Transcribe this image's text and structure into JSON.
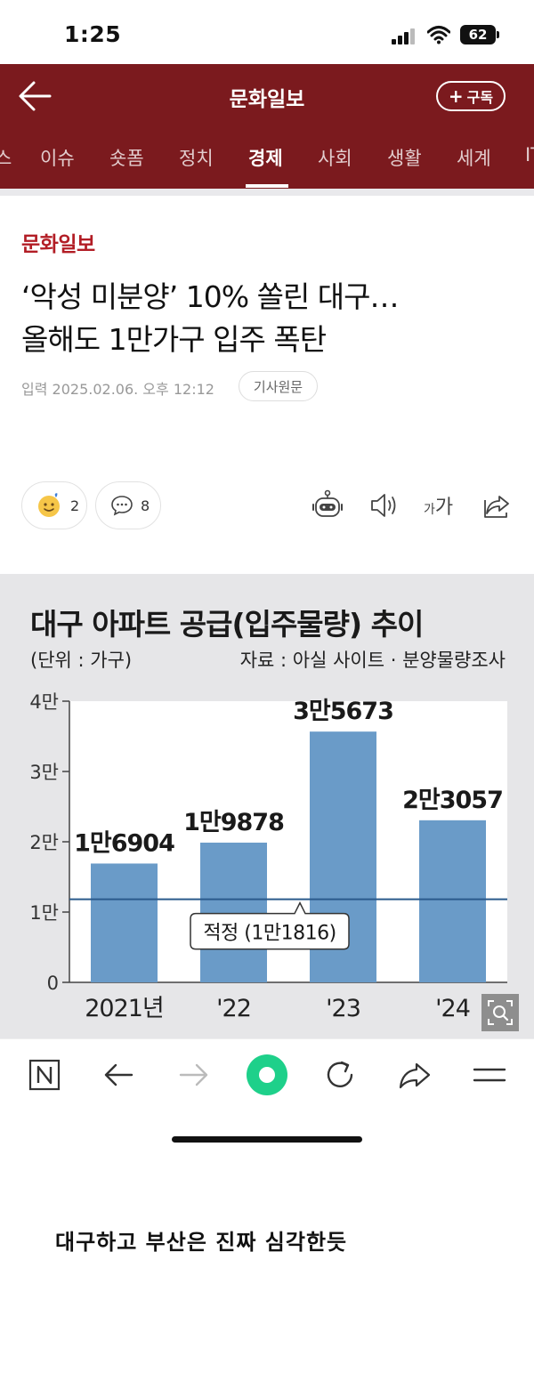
{
  "status_bar": {
    "time": "1:25",
    "battery": "62"
  },
  "header": {
    "title": "문화일보",
    "subscribe_label": "구독",
    "subscribe_plus": "+"
  },
  "nav_tabs": [
    {
      "label": "스"
    },
    {
      "label": "이슈"
    },
    {
      "label": "숏폼"
    },
    {
      "label": "정치"
    },
    {
      "label": "경제",
      "active": true
    },
    {
      "label": "사회"
    },
    {
      "label": "생활"
    },
    {
      "label": "세계"
    },
    {
      "label": "IT"
    }
  ],
  "article": {
    "publisher": "문화일보",
    "headline_line1": "‘악성 미분양’ 10% 쏠린 대구…",
    "headline_line2": "올해도 1만가구 입주 폭탄",
    "byline": "입력 2025.02.06. 오후 12:12",
    "original_label": "기사원문",
    "reaction_count": "2",
    "comment_count": "8",
    "font_size_small": "가",
    "font_size_large": "가"
  },
  "infographic": {
    "title": "대구 아파트 공급(입주물량) 추이",
    "unit": "(단위 : 가구)",
    "source": "자료 : 아실 사이트 · 분양물량조사"
  },
  "chart_data": {
    "type": "bar",
    "categories": [
      "2021년",
      "'22",
      "'23",
      "'24"
    ],
    "values": [
      16904,
      19878,
      35673,
      23057
    ],
    "value_labels": [
      "1만6904",
      "1만9878",
      "3만5673",
      "2만3057"
    ],
    "ylim": [
      0,
      40000
    ],
    "yticks": [
      0,
      10000,
      20000,
      30000,
      40000
    ],
    "ytick_labels": [
      "0",
      "1만",
      "2만",
      "3만",
      "4만"
    ],
    "reference_line": {
      "value": 11816,
      "label": "적정 (1만1816)"
    },
    "bar_color": "#6a9bc8",
    "line_color": "#2a5a8c"
  },
  "caption": "대구하고 부산은 진짜 심각한듯",
  "colors": {
    "brand": "#7b1a1e",
    "publisher": "#b21d25",
    "accent_green": "#1ed08a"
  },
  "icons": {
    "back": "arrow-left-icon",
    "speaker": "speaker-icon",
    "share": "share-icon",
    "bot": "ai-bot-icon",
    "zoom": "zoom-icon"
  }
}
